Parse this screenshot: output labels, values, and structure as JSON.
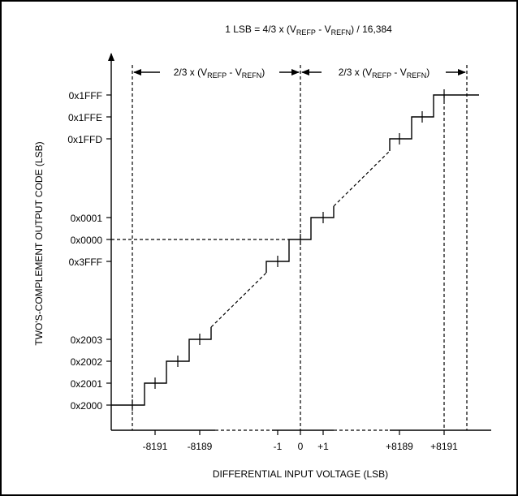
{
  "title": {
    "prefix": "1 LSB = 4/3 x (V",
    "sub1": "REFP",
    "mid": " - V",
    "sub2": "REFN",
    "suffix": ") / 16,384"
  },
  "span_label": {
    "prefix": "2/3 x (V",
    "sub1": "REFP",
    "mid": " - V",
    "sub2": "REFN",
    "suffix": ")"
  },
  "y_axis_label": "TWO'S-COMPLEMENT OUTPUT CODE (LSB)",
  "x_axis_label": "DIFFERENTIAL INPUT VOLTAGE (LSB)",
  "y_codes": [
    "0x1FFF",
    "0x1FFE",
    "0x1FFD",
    "0x0001",
    "0x0000",
    "0x3FFF",
    "0x2003",
    "0x2002",
    "0x2001",
    "0x2000"
  ],
  "x_ticks": [
    "-8191",
    "-8189",
    "-1",
    "0",
    "+1",
    "+8189",
    "+8191"
  ]
}
